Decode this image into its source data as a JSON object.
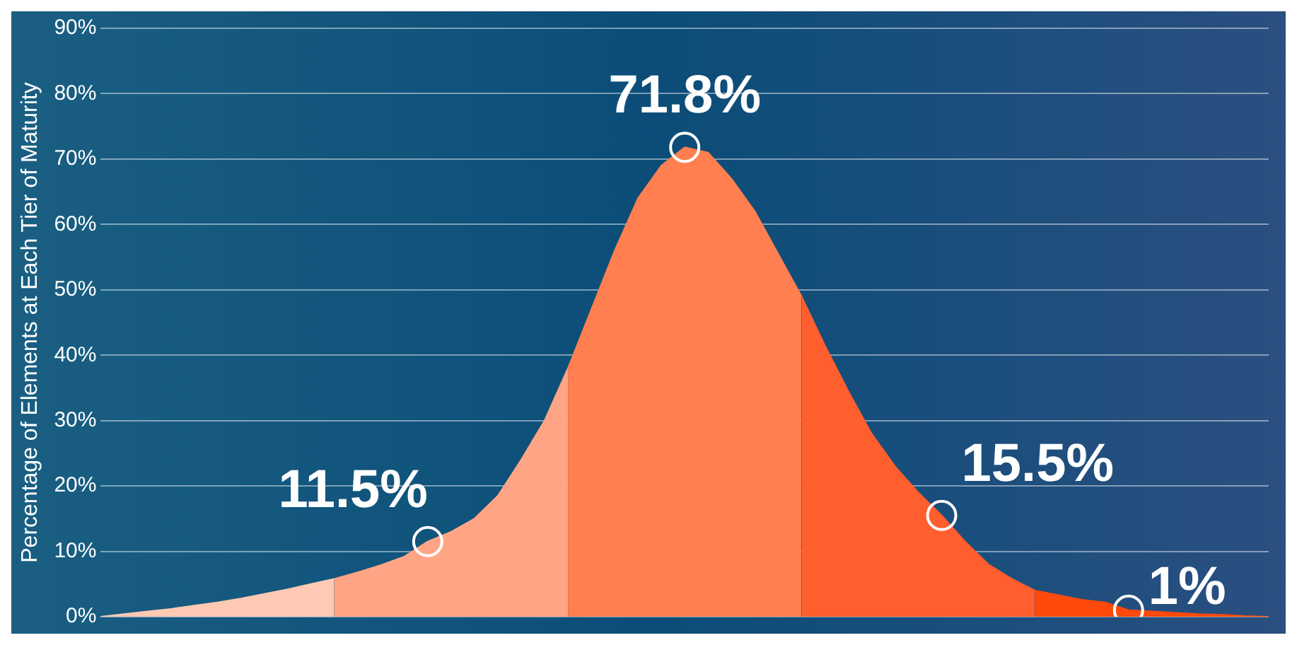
{
  "chart_data": {
    "type": "area",
    "ylabel": "Percentage of Elements at Each Tier of Maturity",
    "categories": [
      null,
      null,
      null,
      null,
      null,
      null,
      null,
      null,
      null,
      null,
      null,
      null,
      null,
      null,
      null,
      null,
      null,
      null,
      null,
      null,
      null,
      null,
      null,
      null,
      null,
      null,
      null,
      null,
      null,
      null,
      null,
      null,
      null,
      null,
      null,
      null,
      null,
      null,
      null,
      null,
      null,
      null,
      null,
      null,
      null,
      null,
      null,
      null,
      null,
      null,
      null
    ],
    "ylim": [
      0,
      90
    ],
    "yticks": [
      {
        "value": 0,
        "label": "0%"
      },
      {
        "value": 10,
        "label": "10%"
      },
      {
        "value": 20,
        "label": "20%"
      },
      {
        "value": 30,
        "label": "30%"
      },
      {
        "value": 40,
        "label": "40%"
      },
      {
        "value": 50,
        "label": "50%"
      },
      {
        "value": 60,
        "label": "60%"
      },
      {
        "value": 70,
        "label": "70%"
      },
      {
        "value": 80,
        "label": "80%"
      },
      {
        "value": 90,
        "label": "90%"
      }
    ],
    "tick_labels": "y",
    "grid": "y",
    "legend": false,
    "series": [
      {
        "color": "#ffc9b3",
        "values": [
          0,
          0.4,
          0.8,
          1.2,
          1.7,
          2.2,
          2.8,
          3.5,
          4.2,
          5,
          5.8,
          null,
          null,
          null,
          null,
          null,
          null,
          null,
          null,
          null,
          null,
          null,
          null,
          null,
          null,
          null,
          null,
          null,
          null,
          null,
          null,
          null,
          null,
          null,
          null,
          null,
          null,
          null,
          null,
          null,
          null,
          null,
          null,
          null,
          null,
          null,
          null,
          null,
          null,
          null,
          null
        ]
      },
      {
        "color": "#ffa585",
        "values": [
          null,
          null,
          null,
          null,
          null,
          null,
          null,
          null,
          null,
          null,
          5.8,
          6.8,
          7.9,
          9.2,
          11.5,
          13,
          15,
          18.5,
          24,
          30,
          38,
          null,
          null,
          null,
          null,
          null,
          null,
          null,
          null,
          null,
          null,
          null,
          null,
          null,
          null,
          null,
          null,
          null,
          null,
          null,
          null,
          null,
          null,
          null,
          null,
          null,
          null,
          null,
          null,
          null,
          null
        ]
      },
      {
        "color": "#ff7f50",
        "values": [
          null,
          null,
          null,
          null,
          null,
          null,
          null,
          null,
          null,
          null,
          null,
          null,
          null,
          null,
          null,
          null,
          null,
          null,
          null,
          null,
          38,
          47,
          56,
          64,
          69,
          71.8,
          71,
          67,
          62,
          55.5,
          49,
          null,
          null,
          null,
          null,
          null,
          null,
          null,
          null,
          null,
          null,
          null,
          null,
          null,
          null,
          null,
          null,
          null,
          null,
          null,
          null
        ]
      },
      {
        "color": "#ff5e2e",
        "values": [
          null,
          null,
          null,
          null,
          null,
          null,
          null,
          null,
          null,
          null,
          null,
          null,
          null,
          null,
          null,
          null,
          null,
          null,
          null,
          null,
          null,
          null,
          null,
          null,
          null,
          null,
          null,
          null,
          null,
          null,
          49,
          41.5,
          34.5,
          28,
          23,
          19,
          15.5,
          11.5,
          8,
          5.8,
          4,
          null,
          null,
          null,
          null,
          null,
          null,
          null,
          null,
          null,
          null
        ]
      },
      {
        "color": "#ff4a0c",
        "values": [
          null,
          null,
          null,
          null,
          null,
          null,
          null,
          null,
          null,
          null,
          null,
          null,
          null,
          null,
          null,
          null,
          null,
          null,
          null,
          null,
          null,
          null,
          null,
          null,
          null,
          null,
          null,
          null,
          null,
          null,
          null,
          null,
          null,
          null,
          null,
          null,
          null,
          null,
          null,
          null,
          4,
          3.3,
          2.6,
          2.2,
          1,
          0.8,
          0.6,
          0.4,
          0.3,
          0.1,
          0
        ]
      },
      {
        "type": "scatter",
        "marker": "circle",
        "color": "#ffffff",
        "values": [
          null,
          null,
          null,
          null,
          null,
          null,
          null,
          null,
          null,
          null,
          null,
          null,
          null,
          null,
          11.5,
          null,
          null,
          null,
          null,
          null,
          null,
          null,
          null,
          null,
          null,
          71.8,
          null,
          null,
          null,
          null,
          null,
          null,
          null,
          null,
          null,
          null,
          15.5,
          null,
          null,
          null,
          null,
          null,
          null,
          null,
          1,
          null,
          null,
          null,
          null,
          null,
          null
        ],
        "value_labels": [
          null,
          null,
          null,
          null,
          null,
          null,
          null,
          null,
          null,
          null,
          null,
          null,
          null,
          null,
          "11.5%",
          null,
          null,
          null,
          null,
          null,
          null,
          null,
          null,
          null,
          null,
          "71.8%",
          null,
          null,
          null,
          null,
          null,
          null,
          null,
          null,
          null,
          null,
          "15.5%",
          null,
          null,
          null,
          null,
          null,
          null,
          null,
          "1%",
          null,
          null,
          null,
          null,
          null,
          null
        ]
      }
    ]
  }
}
